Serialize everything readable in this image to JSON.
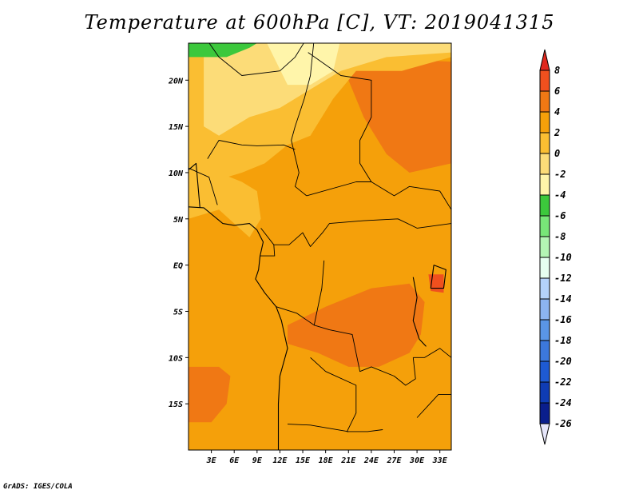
{
  "title": "Temperature at 600hPa [C], VT: 2019041315",
  "credit": "GrADS: IGES/COLA",
  "colors": {
    "c8plus": "#e0281e",
    "c6": "#f0501e",
    "c4": "#f07814",
    "c2": "#f5a00a",
    "c0": "#fabe32",
    "cm2": "#fcdc78",
    "cm4": "#fff5aa",
    "cm6": "#3cc83c",
    "cm8": "#78e678",
    "cm10": "#b4f5b4",
    "cm12": "#e6fff0",
    "cm14": "#b4d2fa",
    "cm16": "#8cb4f0",
    "cm18": "#5a96e6",
    "cm20": "#3c78dc",
    "cm22": "#1e5ad2",
    "cm24": "#0f3cb4",
    "cm26": "#0a1e8c",
    "below": "#e6e6fa",
    "coast": "#000000"
  },
  "chart_data": {
    "type": "heatmap",
    "title": "Temperature at 600hPa [C], VT: 2019041315",
    "variable": "Temperature",
    "level": "600hPa",
    "unit": "C",
    "valid_time": "2019041315",
    "xlim": [
      0,
      34.5
    ],
    "ylim": [
      -20,
      24
    ],
    "x_ticks": [
      {
        "value": 3,
        "label": "3E"
      },
      {
        "value": 6,
        "label": "6E"
      },
      {
        "value": 9,
        "label": "9E"
      },
      {
        "value": 12,
        "label": "12E"
      },
      {
        "value": 15,
        "label": "15E"
      },
      {
        "value": 18,
        "label": "18E"
      },
      {
        "value": 21,
        "label": "21E"
      },
      {
        "value": 24,
        "label": "24E"
      },
      {
        "value": 27,
        "label": "27E"
      },
      {
        "value": 30,
        "label": "30E"
      },
      {
        "value": 33,
        "label": "33E"
      }
    ],
    "y_ticks": [
      {
        "value": 20,
        "label": "20N"
      },
      {
        "value": 15,
        "label": "15N"
      },
      {
        "value": 10,
        "label": "10N"
      },
      {
        "value": 5,
        "label": "5N"
      },
      {
        "value": 0,
        "label": "EQ"
      },
      {
        "value": -5,
        "label": "5S"
      },
      {
        "value": -10,
        "label": "10S"
      },
      {
        "value": -15,
        "label": "15S"
      }
    ],
    "colorbar": {
      "labels": [
        "8",
        "6",
        "4",
        "2",
        "0",
        "-2",
        "-4",
        "-6",
        "-8",
        "-10",
        "-12",
        "-14",
        "-16",
        "-18",
        "-20",
        "-22",
        "-24",
        "-26"
      ],
      "above_max": "8+",
      "below_min": "< -26"
    },
    "regions": [
      {
        "name": "background",
        "level": "2",
        "poly": [
          [
            0,
            24.5
          ],
          [
            34.5,
            24.5
          ],
          [
            34.5,
            -20
          ],
          [
            0,
            -20
          ]
        ]
      },
      {
        "name": "east-north-warm",
        "level": "4",
        "poly": [
          [
            20.5,
            22.5
          ],
          [
            34.5,
            22
          ],
          [
            34.5,
            11
          ],
          [
            29,
            10
          ],
          [
            26,
            12
          ],
          [
            23,
            16
          ],
          [
            21,
            20
          ]
        ]
      },
      {
        "name": "south-center-warm",
        "level": "4",
        "poly": [
          [
            13,
            -6.5
          ],
          [
            18,
            -4.5
          ],
          [
            24,
            -2.5
          ],
          [
            29,
            -2
          ],
          [
            31,
            -4
          ],
          [
            30.5,
            -7.5
          ],
          [
            29,
            -9.5
          ],
          [
            25,
            -11
          ],
          [
            21,
            -11
          ],
          [
            17,
            -9.5
          ],
          [
            13,
            -8.5
          ]
        ]
      },
      {
        "name": "southwest-warm",
        "level": "4",
        "poly": [
          [
            0,
            -11
          ],
          [
            4,
            -11
          ],
          [
            5.5,
            -12
          ],
          [
            5,
            -15
          ],
          [
            3,
            -17
          ],
          [
            0,
            -17
          ]
        ]
      },
      {
        "name": "far-east-pocket",
        "level": "6",
        "poly": [
          [
            31.5,
            -1
          ],
          [
            33.5,
            -1
          ],
          [
            33.5,
            -3
          ],
          [
            31.8,
            -2.8
          ]
        ]
      },
      {
        "name": "north-cool-band",
        "level": "0",
        "poly": [
          [
            0,
            24.5
          ],
          [
            34.5,
            24.5
          ],
          [
            34.5,
            22.5
          ],
          [
            28,
            21
          ],
          [
            22,
            21
          ],
          [
            19,
            18
          ],
          [
            16,
            14
          ],
          [
            13,
            13
          ],
          [
            10,
            11
          ],
          [
            7,
            10
          ],
          [
            3,
            9
          ],
          [
            0,
            9
          ]
        ]
      },
      {
        "name": "west-cool-band",
        "level": "0",
        "poly": [
          [
            0,
            12
          ],
          [
            4,
            10
          ],
          [
            7,
            9
          ],
          [
            9,
            8
          ],
          [
            9.5,
            5
          ],
          [
            8,
            3
          ],
          [
            4,
            6
          ],
          [
            0,
            5
          ]
        ]
      },
      {
        "name": "north-colder",
        "level": "-2",
        "poly": [
          [
            2,
            24.5
          ],
          [
            34.5,
            24.5
          ],
          [
            34.5,
            23
          ],
          [
            26,
            22.5
          ],
          [
            20,
            21
          ],
          [
            16,
            19
          ],
          [
            12,
            17
          ],
          [
            8,
            16
          ],
          [
            4,
            14
          ],
          [
            2,
            15
          ]
        ]
      },
      {
        "name": "north-coldest",
        "level": "-4",
        "poly": [
          [
            10,
            24.5
          ],
          [
            20,
            24.5
          ],
          [
            19,
            21
          ],
          [
            16,
            19.5
          ],
          [
            13,
            19.5
          ]
        ]
      },
      {
        "name": "north-green",
        "level": "-6",
        "poly": [
          [
            0,
            24.5
          ],
          [
            10,
            24.5
          ],
          [
            8,
            23.5
          ],
          [
            5,
            22.5
          ],
          [
            0,
            22.5
          ]
        ]
      }
    ],
    "coast_lines": [
      [
        [
          0,
          6.3
        ],
        [
          2,
          6.2
        ],
        [
          4.5,
          4.5
        ],
        [
          6,
          4.3
        ],
        [
          8,
          4.5
        ],
        [
          9,
          3.8
        ],
        [
          9.8,
          2.5
        ],
        [
          9.4,
          1
        ],
        [
          9.2,
          -0.5
        ],
        [
          8.8,
          -1.5
        ],
        [
          10,
          -3
        ],
        [
          11.5,
          -4.5
        ],
        [
          12.2,
          -6
        ],
        [
          13,
          -9
        ],
        [
          12,
          -12
        ],
        [
          11.8,
          -15
        ],
        [
          11.8,
          -20
        ]
      ],
      [
        [
          0,
          10.3
        ],
        [
          1,
          11
        ],
        [
          1.5,
          6.2
        ]
      ],
      [
        [
          29.5,
          -1.3
        ],
        [
          30,
          -3.5
        ],
        [
          29.5,
          -6
        ],
        [
          30.3,
          -8
        ],
        [
          31.2,
          -8.8
        ]
      ],
      [
        [
          32.2,
          0
        ],
        [
          31.8,
          -2.5
        ],
        [
          33.5,
          -2.5
        ],
        [
          33.8,
          -0.5
        ],
        [
          32.2,
          0
        ]
      ]
    ],
    "border_lines": [
      [
        [
          2.3,
          24.5
        ],
        [
          4,
          22.5
        ],
        [
          7,
          20.5
        ],
        [
          12,
          21
        ],
        [
          14,
          22.5
        ],
        [
          15.5,
          24.5
        ]
      ],
      [
        [
          16.5,
          24.5
        ],
        [
          16,
          20.5
        ],
        [
          15.2,
          18
        ],
        [
          14,
          15
        ],
        [
          13.5,
          13.5
        ],
        [
          14.5,
          10
        ],
        [
          14,
          8.5
        ],
        [
          15.5,
          7.5
        ]
      ],
      [
        [
          15.7,
          23
        ],
        [
          20,
          20.5
        ],
        [
          24,
          20
        ],
        [
          24,
          16
        ],
        [
          22.5,
          13.5
        ],
        [
          22.5,
          11
        ],
        [
          24,
          9
        ]
      ],
      [
        [
          2.5,
          11.5
        ],
        [
          4,
          13.5
        ],
        [
          7,
          13
        ],
        [
          9,
          12.9
        ],
        [
          12.5,
          13
        ],
        [
          14,
          12.5
        ]
      ],
      [
        [
          0,
          10.5
        ],
        [
          2.7,
          9.5
        ],
        [
          3.8,
          6.5
        ]
      ],
      [
        [
          9.5,
          4
        ],
        [
          11.2,
          2.2
        ],
        [
          13.2,
          2.2
        ],
        [
          15,
          3.5
        ],
        [
          16,
          2
        ],
        [
          17.6,
          3.5
        ],
        [
          18.5,
          4.5
        ],
        [
          23,
          4.8
        ],
        [
          27.5,
          5
        ],
        [
          30,
          4
        ],
        [
          34.5,
          4.5
        ]
      ],
      [
        [
          15.5,
          7.5
        ],
        [
          22,
          9
        ],
        [
          24,
          9
        ],
        [
          27,
          7.5
        ],
        [
          29,
          8.5
        ],
        [
          33,
          8
        ],
        [
          34.5,
          6
        ]
      ],
      [
        [
          11.2,
          2.2
        ],
        [
          11.3,
          1
        ],
        [
          9.4,
          1
        ]
      ],
      [
        [
          11.5,
          -4.5
        ],
        [
          14.2,
          -5.2
        ],
        [
          16.5,
          -6.5
        ],
        [
          18.5,
          -7
        ],
        [
          21.5,
          -7.5
        ],
        [
          22.5,
          -11.5
        ],
        [
          24,
          -11
        ],
        [
          27,
          -12
        ],
        [
          28.5,
          -13
        ],
        [
          29.8,
          -12.3
        ],
        [
          29.5,
          -10
        ]
      ],
      [
        [
          16,
          -10
        ],
        [
          18,
          -11.5
        ],
        [
          22,
          -13
        ],
        [
          22,
          -16
        ],
        [
          20.8,
          -18
        ],
        [
          23.5,
          -18
        ],
        [
          25.5,
          -17.8
        ]
      ],
      [
        [
          13,
          -17.2
        ],
        [
          16,
          -17.3
        ],
        [
          21,
          -18
        ]
      ],
      [
        [
          29.5,
          -10
        ],
        [
          31,
          -10
        ],
        [
          33,
          -9
        ],
        [
          34.5,
          -10
        ]
      ],
      [
        [
          30,
          -16.5
        ],
        [
          32.8,
          -14
        ],
        [
          34.5,
          -14
        ]
      ],
      [
        [
          16.5,
          -6.5
        ],
        [
          17.5,
          -2.5
        ],
        [
          17.8,
          0.5
        ]
      ]
    ]
  }
}
